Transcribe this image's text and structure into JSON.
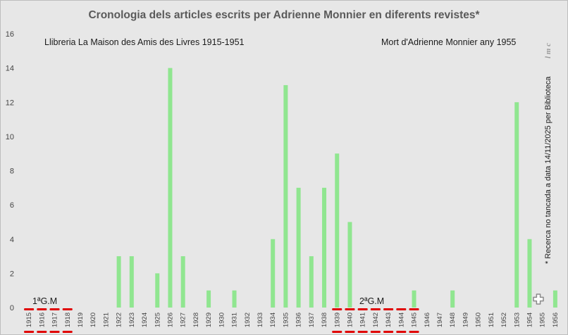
{
  "chart_data": {
    "type": "bar",
    "title": "Cronologia dels articles escrits per Adrienne Monnier en diferents revistes*",
    "ylim": [
      0,
      16
    ],
    "yticks": [
      0,
      2,
      4,
      6,
      8,
      10,
      12,
      14,
      16
    ],
    "grid": false,
    "categories": [
      "1915",
      "1916",
      "1917",
      "1918",
      "1919",
      "1920",
      "1921",
      "1922",
      "1923",
      "1924",
      "1925",
      "1926",
      "1927",
      "1928",
      "1929",
      "1930",
      "1931",
      "1932",
      "1933",
      "1934",
      "1935",
      "1936",
      "1937",
      "1938",
      "1939",
      "1940",
      "1941",
      "1942",
      "1943",
      "1944",
      "1945",
      "1946",
      "1947",
      "1948",
      "1949",
      "1950",
      "1951",
      "1952",
      "1953",
      "1954",
      "1955",
      "1956"
    ],
    "values": [
      0,
      0,
      0,
      0,
      0,
      0,
      0,
      3,
      3,
      0,
      2,
      14,
      3,
      0,
      1,
      0,
      1,
      0,
      0,
      4,
      13,
      7,
      3,
      7,
      9,
      5,
      0,
      0,
      0,
      0,
      1,
      0,
      0,
      1,
      0,
      0,
      0,
      0,
      12,
      4,
      0,
      1
    ],
    "bar_color": "#90e690",
    "annotations": {
      "bookshop": "Llibreria La Maison des Amis des Livres 1915-1951",
      "death": "Mort d'Adrienne Monnier any 1955",
      "ww1": "1ªG.M",
      "ww2": "2ªG.M",
      "side_note": "* Recerca no tancada a data 14/11/2025 per Biblioteca",
      "signature": "l m c"
    },
    "war_periods": [
      {
        "label": "1ªG.M",
        "from": "1915",
        "to": "1918",
        "color": "#e00000"
      },
      {
        "label": "2ªG.M",
        "from": "1939",
        "to": "1945",
        "color": "#e00000"
      }
    ],
    "death_marker": {
      "year": "1955",
      "icon": "cross-icon"
    }
  }
}
